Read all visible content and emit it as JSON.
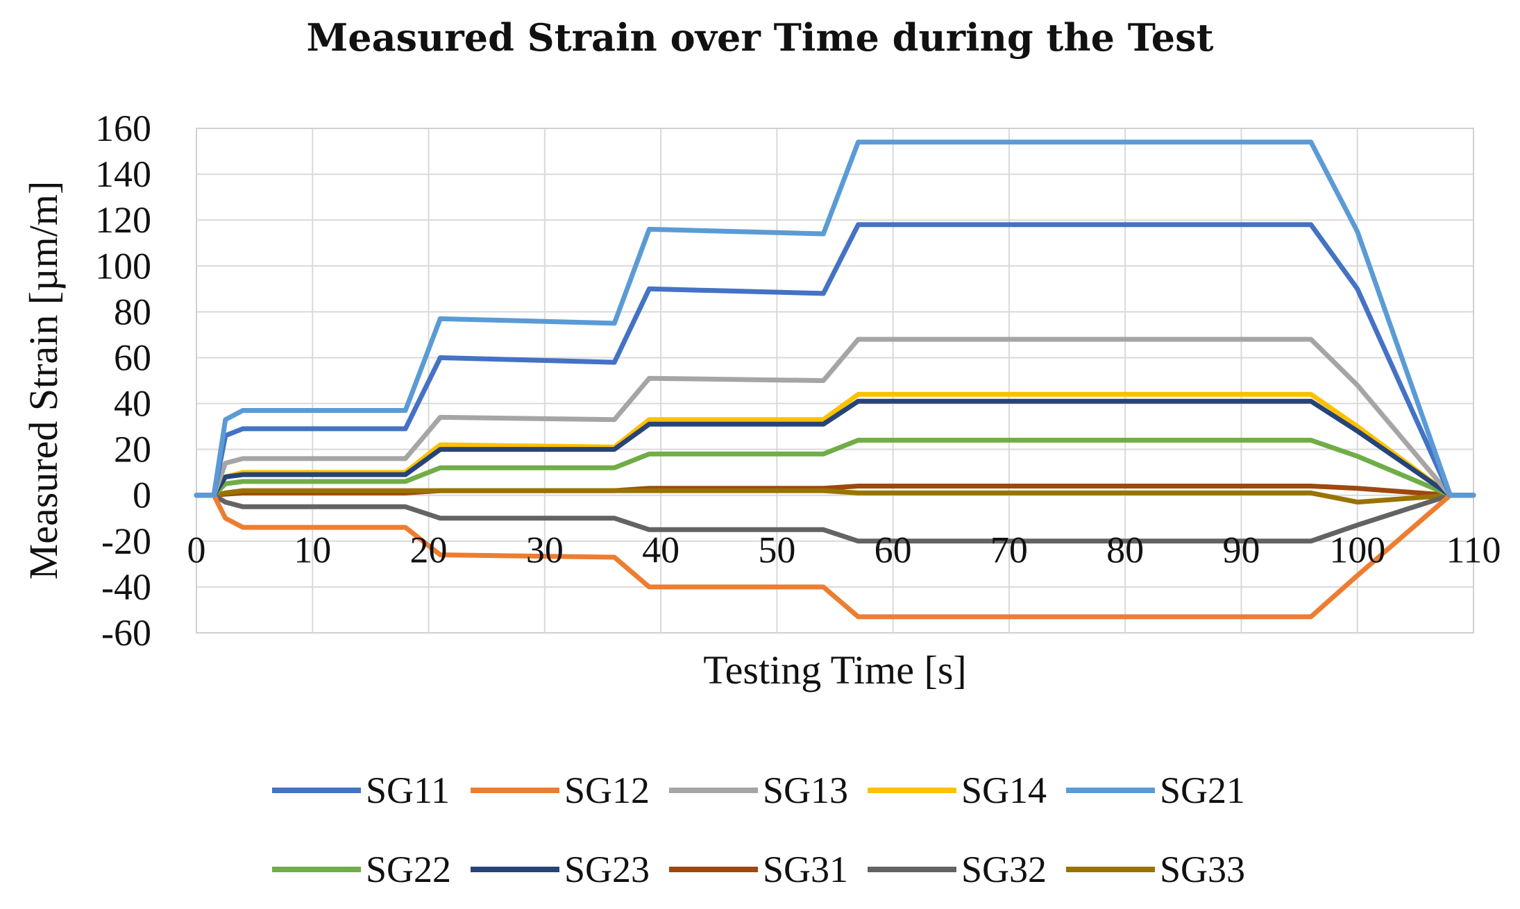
{
  "chart_data": {
    "type": "line",
    "title": "Measured Strain over Time during the Test",
    "xlabel": "Testing Time [s]",
    "ylabel": "Measured Strain [µm/m]",
    "xlim": [
      0,
      110
    ],
    "ylim": [
      -60,
      160
    ],
    "xticks": [
      0,
      10,
      20,
      30,
      40,
      50,
      60,
      70,
      80,
      90,
      100,
      110
    ],
    "yticks": [
      160,
      140,
      120,
      100,
      80,
      60,
      40,
      20,
      0,
      -20,
      -40,
      -60
    ],
    "grid": true,
    "legend_position": "bottom",
    "x": [
      0,
      1.5,
      2.5,
      4,
      18,
      21,
      36,
      39,
      54,
      57,
      96,
      100,
      108,
      110
    ],
    "series": [
      {
        "name": "SG11",
        "color": "#4472C4",
        "values": [
          0,
          0,
          26,
          29,
          29,
          60,
          58,
          90,
          88,
          118,
          118,
          90,
          0,
          0
        ]
      },
      {
        "name": "SG12",
        "color": "#ED7D31",
        "values": [
          0,
          0,
          -10,
          -14,
          -14,
          -26,
          -27,
          -40,
          -40,
          -53,
          -53,
          -35,
          0,
          0
        ]
      },
      {
        "name": "SG13",
        "color": "#A5A5A5",
        "values": [
          0,
          0,
          14,
          16,
          16,
          34,
          33,
          51,
          50,
          68,
          68,
          48,
          0,
          0
        ]
      },
      {
        "name": "SG14",
        "color": "#FFC000",
        "values": [
          0,
          0,
          8,
          10,
          10,
          22,
          21,
          33,
          33,
          44,
          44,
          30,
          0,
          0
        ]
      },
      {
        "name": "SG21",
        "color": "#5B9BD5",
        "values": [
          0,
          0,
          33,
          37,
          37,
          77,
          75,
          116,
          114,
          154,
          154,
          115,
          0,
          0
        ]
      },
      {
        "name": "SG22",
        "color": "#70AD47",
        "values": [
          0,
          0,
          5,
          6,
          6,
          12,
          12,
          18,
          18,
          24,
          24,
          17,
          0,
          0
        ]
      },
      {
        "name": "SG23",
        "color": "#264478",
        "values": [
          0,
          0,
          8,
          9,
          9,
          20,
          20,
          31,
          31,
          41,
          41,
          28,
          0,
          0
        ]
      },
      {
        "name": "SG31",
        "color": "#9E480E",
        "values": [
          0,
          0,
          0.5,
          1,
          1,
          2,
          2,
          3,
          3,
          4,
          4,
          3,
          0,
          0
        ]
      },
      {
        "name": "SG32",
        "color": "#636363",
        "values": [
          0,
          0,
          -3,
          -5,
          -5,
          -10,
          -10,
          -15,
          -15,
          -20,
          -20,
          -13,
          0,
          0
        ]
      },
      {
        "name": "SG33",
        "color": "#997300",
        "values": [
          0,
          0,
          1,
          2,
          2,
          2,
          2,
          2,
          2,
          1,
          1,
          -3,
          0,
          0
        ]
      }
    ]
  }
}
